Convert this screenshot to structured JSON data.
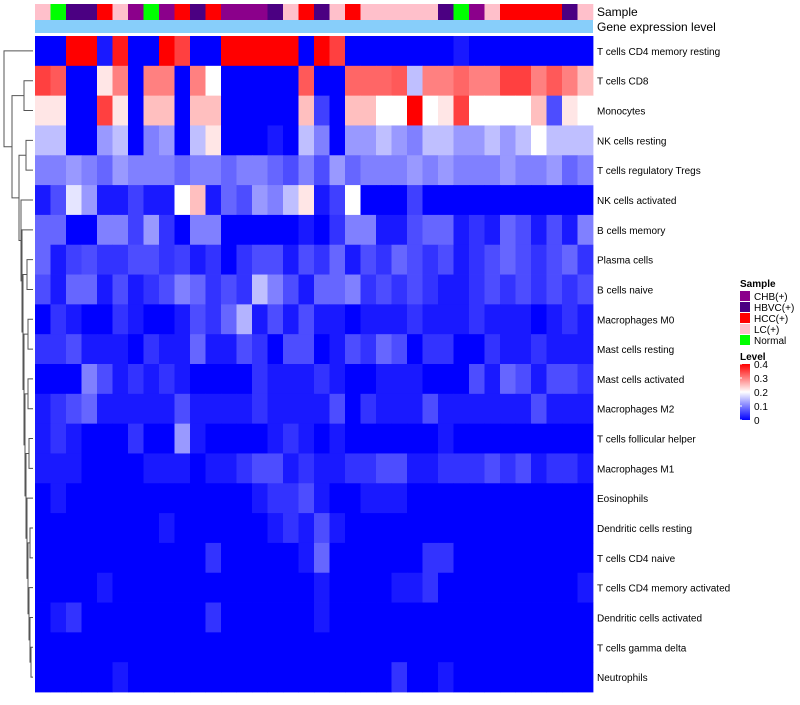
{
  "chart_data": {
    "type": "heatmap",
    "title": "",
    "annotation_tracks": [
      {
        "name": "Sample",
        "label": "Sample"
      },
      {
        "name": "Gene expression level",
        "label": "Gene expression level",
        "color": "#87CEFA"
      }
    ],
    "sample_groups": {
      "CHB(+)": "#8B008B",
      "HBVC(+)": "#4B0082",
      "HCC(+)": "#FF0000",
      "LC(+)": "#FFC0CB",
      "Normal": "#00FF00"
    },
    "sample_annotation": [
      "LC(+)",
      "Normal",
      "HBVC(+)",
      "HBVC(+)",
      "HCC(+)",
      "LC(+)",
      "CHB(+)",
      "Normal",
      "CHB(+)",
      "HCC(+)",
      "HBVC(+)",
      "HCC(+)",
      "CHB(+)",
      "CHB(+)",
      "CHB(+)",
      "HBVC(+)",
      "LC(+)",
      "HCC(+)",
      "HBVC(+)",
      "LC(+)",
      "HCC(+)",
      "LC(+)",
      "LC(+)",
      "LC(+)",
      "LC(+)",
      "LC(+)",
      "HBVC(+)",
      "Normal",
      "CHB(+)",
      "LC(+)",
      "HCC(+)",
      "HCC(+)",
      "HCC(+)",
      "HCC(+)",
      "HBVC(+)",
      "LC(+)"
    ],
    "rows": [
      "T cells CD4 memory resting",
      "T cells CD8",
      "Monocytes",
      "NK cells resting",
      "T cells regulatory  Tregs",
      "NK cells activated",
      "B cells memory",
      "Plasma cells",
      "B cells naive",
      "Macrophages M0",
      "Mast cells resting",
      "Mast cells activated",
      "Macrophages M2",
      "T cells follicular helper",
      "Macrophages M1",
      "Eosinophils",
      "Dendritic cells resting",
      "T cells CD4 naive",
      "T cells CD4 memory activated",
      "Dendritic cells activated",
      "T cells gamma delta",
      "Neutrophils"
    ],
    "values": [
      [
        0,
        0,
        0.4,
        0.4,
        0.02,
        0.38,
        0,
        0,
        0.4,
        0.35,
        0,
        0,
        0.4,
        0.4,
        0.4,
        0.4,
        0.4,
        0,
        0.4,
        0.35,
        0,
        0,
        0,
        0,
        0,
        0,
        0,
        0.02,
        0,
        0,
        0,
        0,
        0,
        0,
        0,
        0
      ],
      [
        0.35,
        0.33,
        0,
        0,
        0.22,
        0.3,
        0,
        0.3,
        0.3,
        0,
        0.3,
        0.2,
        0,
        0,
        0,
        0,
        0,
        0.33,
        0,
        0,
        0.32,
        0.32,
        0.32,
        0.33,
        0.15,
        0.3,
        0.3,
        0.32,
        0.3,
        0.3,
        0.35,
        0.35,
        0.3,
        0.33,
        0.3,
        0.25
      ],
      [
        0.22,
        0.22,
        0,
        0,
        0.35,
        0.22,
        0,
        0.25,
        0.25,
        0,
        0.25,
        0.25,
        0,
        0,
        0,
        0,
        0,
        0.25,
        0.05,
        0,
        0.25,
        0.25,
        0.2,
        0.2,
        0.4,
        0.2,
        0.22,
        0.35,
        0.2,
        0.2,
        0.2,
        0.2,
        0.25,
        0.06,
        0.22,
        0.2
      ],
      [
        0.15,
        0.15,
        0,
        0,
        0.12,
        0.15,
        0,
        0.1,
        0.12,
        0,
        0.15,
        0.22,
        0,
        0,
        0,
        0.02,
        0,
        0.15,
        0.1,
        0,
        0.12,
        0.12,
        0.15,
        0.12,
        0.1,
        0.15,
        0.15,
        0.12,
        0.12,
        0.15,
        0.12,
        0.15,
        0.2,
        0.15,
        0.15,
        0.15
      ],
      [
        0.1,
        0.1,
        0.12,
        0.1,
        0.08,
        0.12,
        0.1,
        0.1,
        0.1,
        0.08,
        0.1,
        0.1,
        0.08,
        0.1,
        0.1,
        0.08,
        0.06,
        0.1,
        0.06,
        0.12,
        0.08,
        0.1,
        0.1,
        0.1,
        0.12,
        0.1,
        0.12,
        0.1,
        0.1,
        0.1,
        0.12,
        0.1,
        0.1,
        0.12,
        0.08,
        0.1
      ],
      [
        0.02,
        0.06,
        0.18,
        0.12,
        0.02,
        0.02,
        0.05,
        0.02,
        0.02,
        0.2,
        0.25,
        0.02,
        0.08,
        0.06,
        0.12,
        0.1,
        0.15,
        0.22,
        0.02,
        0.05,
        0.2,
        0,
        0,
        0,
        0.05,
        0,
        0,
        0,
        0,
        0,
        0,
        0,
        0,
        0,
        0,
        0
      ],
      [
        0.08,
        0.08,
        0,
        0,
        0.1,
        0.1,
        0.05,
        0.12,
        0.04,
        0,
        0.1,
        0.1,
        0,
        0,
        0,
        0,
        0,
        0.02,
        0,
        0.04,
        0.1,
        0.1,
        0.02,
        0.02,
        0.06,
        0.08,
        0.08,
        0.02,
        0.04,
        0.02,
        0.08,
        0.06,
        0.02,
        0.06,
        0.02,
        0.1
      ],
      [
        0.08,
        0.02,
        0.05,
        0.06,
        0.04,
        0.04,
        0.06,
        0.06,
        0.04,
        0.05,
        0.02,
        0.04,
        0,
        0.04,
        0.06,
        0.06,
        0.02,
        0.06,
        0.04,
        0.08,
        0.02,
        0.06,
        0.04,
        0.08,
        0.06,
        0.04,
        0.06,
        0.02,
        0.04,
        0.06,
        0.08,
        0.06,
        0.04,
        0.06,
        0.08,
        0.04
      ],
      [
        0.06,
        0.02,
        0.08,
        0.08,
        0.02,
        0.06,
        0.02,
        0.04,
        0.06,
        0.1,
        0.08,
        0.04,
        0.06,
        0.04,
        0.15,
        0.1,
        0.06,
        0.02,
        0.08,
        0.08,
        0.1,
        0.04,
        0.06,
        0.04,
        0.06,
        0.04,
        0.02,
        0.02,
        0.04,
        0.06,
        0.04,
        0.06,
        0.04,
        0.06,
        0.04,
        0.06
      ],
      [
        0,
        0.04,
        0.02,
        0,
        0,
        0.04,
        0.02,
        0,
        0,
        0.02,
        0.06,
        0.04,
        0.08,
        0.14,
        0.02,
        0.06,
        0.02,
        0.06,
        0.02,
        0.02,
        0,
        0.02,
        0.02,
        0.02,
        0.04,
        0.02,
        0.02,
        0.02,
        0.04,
        0.02,
        0.02,
        0.02,
        0,
        0.02,
        0.04,
        0.02
      ],
      [
        0.04,
        0.04,
        0.06,
        0.02,
        0.02,
        0.02,
        0,
        0.04,
        0.02,
        0.02,
        0.08,
        0.02,
        0.02,
        0.06,
        0.04,
        0,
        0.06,
        0.06,
        0,
        0.02,
        0.06,
        0.04,
        0.08,
        0.06,
        0,
        0.04,
        0.04,
        0,
        0,
        0.04,
        0.02,
        0.02,
        0.04,
        0.02,
        0.02,
        0.02
      ],
      [
        0,
        0,
        0,
        0.1,
        0.06,
        0.02,
        0.04,
        0.02,
        0.04,
        0.02,
        0,
        0,
        0,
        0,
        0.04,
        0.02,
        0.02,
        0.02,
        0.04,
        0.02,
        0,
        0,
        0.02,
        0.02,
        0.02,
        0,
        0,
        0,
        0.06,
        0.02,
        0.08,
        0.06,
        0.02,
        0.06,
        0.06,
        0.04
      ],
      [
        0.02,
        0.04,
        0.06,
        0.08,
        0.02,
        0.02,
        0.02,
        0.02,
        0.02,
        0.06,
        0.02,
        0.02,
        0.02,
        0.02,
        0.04,
        0.02,
        0.02,
        0.02,
        0.02,
        0.06,
        0,
        0.04,
        0.02,
        0.02,
        0.02,
        0.06,
        0.02,
        0.02,
        0.02,
        0.02,
        0.02,
        0.02,
        0.06,
        0.02,
        0.02,
        0.02
      ],
      [
        0.02,
        0.04,
        0.02,
        0,
        0,
        0,
        0.04,
        0,
        0,
        0.12,
        0.02,
        0,
        0,
        0,
        0,
        0.02,
        0.04,
        0.02,
        0,
        0.02,
        0,
        0,
        0,
        0,
        0,
        0,
        0.02,
        0,
        0,
        0,
        0,
        0,
        0,
        0,
        0,
        0
      ],
      [
        0.02,
        0.02,
        0.02,
        0,
        0,
        0,
        0,
        0.02,
        0.02,
        0.02,
        0,
        0.02,
        0.02,
        0.04,
        0.06,
        0.06,
        0.02,
        0.04,
        0.02,
        0.02,
        0.04,
        0.04,
        0.06,
        0.06,
        0.02,
        0.02,
        0.04,
        0.04,
        0.04,
        0.06,
        0.04,
        0.06,
        0.02,
        0.04,
        0.04,
        0.02
      ],
      [
        0,
        0.02,
        0,
        0,
        0,
        0,
        0,
        0,
        0,
        0,
        0,
        0,
        0,
        0,
        0.02,
        0.04,
        0.04,
        0.06,
        0.02,
        0,
        0,
        0.02,
        0.02,
        0.02,
        0,
        0,
        0,
        0,
        0,
        0,
        0,
        0,
        0,
        0,
        0,
        0
      ],
      [
        0,
        0,
        0,
        0,
        0,
        0,
        0,
        0,
        0.02,
        0,
        0,
        0,
        0,
        0,
        0,
        0.02,
        0.04,
        0.02,
        0.06,
        0.02,
        0,
        0,
        0,
        0,
        0,
        0,
        0,
        0,
        0,
        0,
        0,
        0,
        0,
        0,
        0,
        0
      ],
      [
        0,
        0,
        0,
        0,
        0,
        0,
        0,
        0,
        0,
        0,
        0,
        0.04,
        0,
        0,
        0,
        0,
        0,
        0.02,
        0.08,
        0,
        0,
        0,
        0,
        0,
        0,
        0.04,
        0.04,
        0,
        0,
        0,
        0,
        0,
        0,
        0,
        0,
        0
      ],
      [
        0,
        0,
        0,
        0,
        0.02,
        0,
        0,
        0,
        0,
        0,
        0,
        0,
        0,
        0,
        0,
        0,
        0,
        0,
        0.02,
        0,
        0,
        0,
        0,
        0.02,
        0.02,
        0.04,
        0,
        0,
        0,
        0,
        0,
        0,
        0,
        0,
        0,
        0.02
      ],
      [
        0,
        0.02,
        0.04,
        0,
        0,
        0,
        0,
        0,
        0,
        0,
        0,
        0.04,
        0,
        0,
        0,
        0,
        0,
        0,
        0.02,
        0,
        0,
        0,
        0,
        0,
        0,
        0,
        0,
        0,
        0,
        0,
        0,
        0,
        0,
        0,
        0,
        0
      ],
      [
        0,
        0,
        0,
        0,
        0,
        0,
        0,
        0,
        0,
        0,
        0,
        0,
        0,
        0,
        0,
        0,
        0,
        0,
        0,
        0,
        0,
        0,
        0,
        0,
        0,
        0,
        0,
        0,
        0,
        0,
        0,
        0,
        0,
        0,
        0,
        0
      ],
      [
        0,
        0,
        0,
        0,
        0,
        0.02,
        0,
        0,
        0,
        0,
        0,
        0,
        0,
        0,
        0,
        0,
        0,
        0,
        0,
        0,
        0,
        0,
        0,
        0.04,
        0,
        0,
        0.02,
        0,
        0,
        0,
        0,
        0,
        0,
        0,
        0,
        0
      ]
    ],
    "color_scale": {
      "low": "#0000FF",
      "mid": "#FFFFFF",
      "high": "#FF0000",
      "min": 0,
      "max": 0.4
    },
    "legend": {
      "sample_title": "Sample",
      "sample_entries": [
        "CHB(+)",
        "HBVC(+)",
        "HCC(+)",
        "LC(+)",
        "Normal"
      ],
      "level_title": "Level",
      "level_ticks": [
        "0.4",
        "0.3",
        "0.2",
        "0.1",
        "0"
      ],
      "level_values": [
        0.4,
        0.3,
        0.2,
        0.1,
        0
      ]
    }
  }
}
